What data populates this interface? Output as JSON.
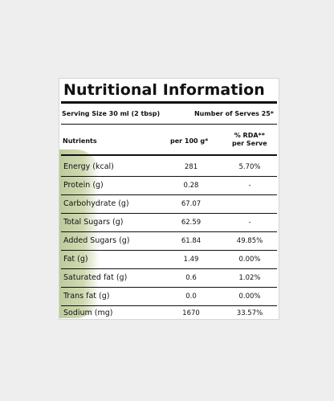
{
  "label": {
    "title": "Nutritional Information",
    "serving_size": "Serving Size 30 ml (2 tbsp)",
    "number_of_serves": "Number of Serves 25*",
    "header": {
      "nutrients": "Nutrients",
      "per100": "per 100 g*",
      "rda_line1": "% RDA**",
      "rda_line2": "per Serve"
    },
    "rows": [
      {
        "name": "Energy (kcal)",
        "per100": "281",
        "rda": "5.70%"
      },
      {
        "name": "Protein (g)",
        "per100": "0.28",
        "rda": "-"
      },
      {
        "name": "Carbohydrate (g)",
        "per100": "67.07",
        "rda": ""
      },
      {
        "name": "Total Sugars (g)",
        "per100": "62.59",
        "rda": "-"
      },
      {
        "name": "Added Sugars (g)",
        "per100": "61.84",
        "rda": "49.85%"
      },
      {
        "name": "Fat (g)",
        "per100": "1.49",
        "rda": "0.00%"
      },
      {
        "name": "Saturated fat (g)",
        "per100": "0.6",
        "rda": "1.02%"
      },
      {
        "name": "Trans fat (g)",
        "per100": "0.0",
        "rda": "0.00%"
      },
      {
        "name": "Sodium (mg)",
        "per100": "1670",
        "rda": "33.57%"
      }
    ]
  },
  "colors": {
    "background": "#eeeeee",
    "label_bg": "#ffffff",
    "ink": "#111111",
    "smear": "#b9c896"
  }
}
